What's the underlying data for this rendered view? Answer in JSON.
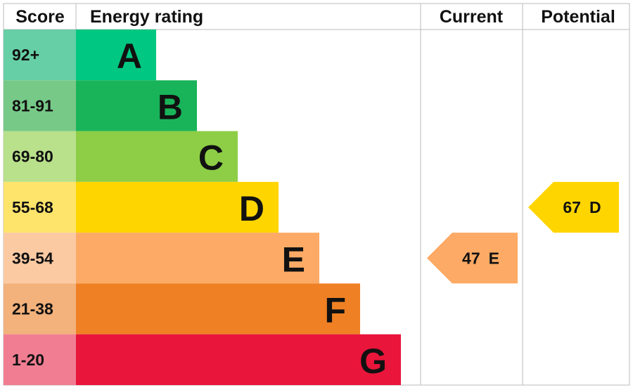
{
  "header": {
    "score": "Score",
    "rating": "Energy rating",
    "current": "Current",
    "potential": "Potential"
  },
  "rows": [
    {
      "score": "92+",
      "letter": "A",
      "color": "#00c781",
      "score_color": "#66cfa5"
    },
    {
      "score": "81-91",
      "letter": "B",
      "color": "#19b459",
      "score_color": "#77c987"
    },
    {
      "score": "69-80",
      "letter": "C",
      "color": "#8dce46",
      "score_color": "#b9e08a"
    },
    {
      "score": "55-68",
      "letter": "D",
      "color": "#ffd500",
      "score_color": "#ffe46b"
    },
    {
      "score": "39-54",
      "letter": "E",
      "color": "#fcaa65",
      "score_color": "#fbcaa3"
    },
    {
      "score": "21-38",
      "letter": "F",
      "color": "#ef8023",
      "score_color": "#f3b17b"
    },
    {
      "score": "1-20",
      "letter": "G",
      "color": "#e9153b",
      "score_color": "#f07d92"
    }
  ],
  "current": {
    "value": 47,
    "band": "E",
    "color": "#fcaa65"
  },
  "potential": {
    "value": 67,
    "band": "D",
    "color": "#ffd500"
  }
}
